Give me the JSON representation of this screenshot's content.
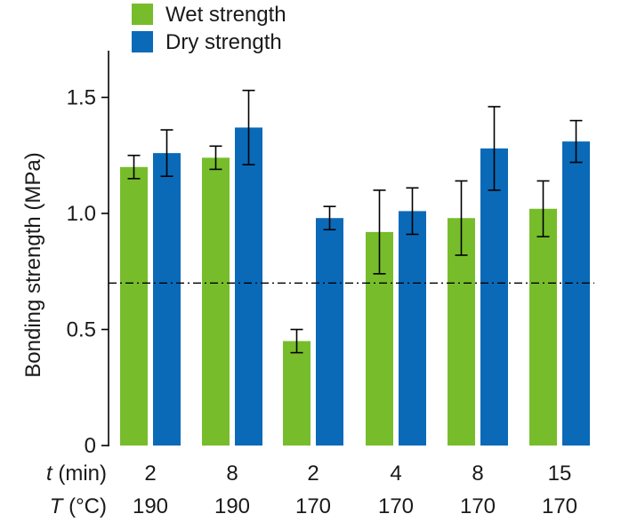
{
  "chart_data": {
    "type": "bar",
    "ylabel": "Bonding strength (MPa)",
    "ylim": [
      0,
      1.7
    ],
    "yticks": [
      0,
      0.5,
      1.0,
      1.5
    ],
    "ytick_labels": [
      "0",
      "0.5",
      "1.0",
      "1.5"
    ],
    "reference_line": 0.7,
    "categories": [
      {
        "t": "2",
        "T": "190"
      },
      {
        "t": "8",
        "T": "190"
      },
      {
        "t": "2",
        "T": "170"
      },
      {
        "t": "4",
        "T": "170"
      },
      {
        "t": "8",
        "T": "170"
      },
      {
        "t": "15",
        "T": "170"
      }
    ],
    "series": [
      {
        "name": "Wet strength",
        "color": "#77bd2b",
        "values": [
          1.2,
          1.24,
          0.45,
          0.92,
          0.98,
          1.02
        ],
        "errors": [
          0.05,
          0.05,
          0.05,
          0.18,
          0.16,
          0.12
        ]
      },
      {
        "name": "Dry strength",
        "color": "#0a6ab8",
        "values": [
          1.26,
          1.37,
          0.98,
          1.01,
          1.28,
          1.31
        ],
        "errors": [
          0.1,
          0.16,
          0.05,
          0.1,
          0.18,
          0.09
        ]
      }
    ],
    "row_labels": {
      "t_symbol": "t",
      "t_unit": " (min)",
      "T_symbol": "T",
      "T_unit": " (°C)"
    },
    "legend_placement": "top-left"
  }
}
